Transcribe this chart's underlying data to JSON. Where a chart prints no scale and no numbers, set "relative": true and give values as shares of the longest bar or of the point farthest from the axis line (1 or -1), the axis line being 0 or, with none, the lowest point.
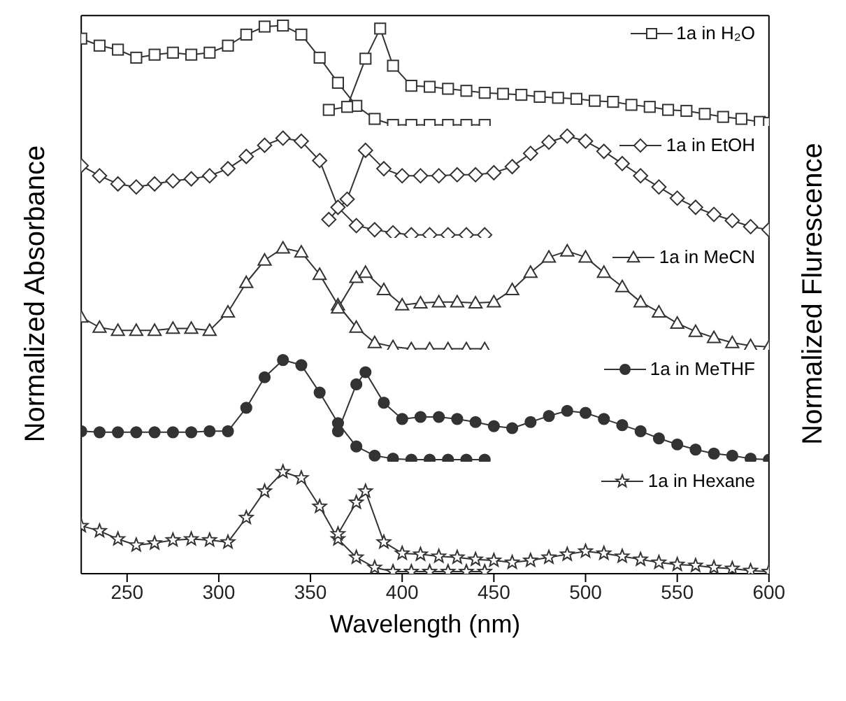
{
  "chart_data": [
    {
      "type": "line",
      "relative": true,
      "legend": "top right",
      "marker": "square",
      "tick_labels": false,
      "xlim": [
        225,
        600
      ],
      "series": [
        {
          "name": "1a in H₂O",
          "color": "#333333",
          "x": [
            225,
            235,
            245,
            255,
            265,
            275,
            285,
            295,
            305,
            315,
            325,
            335,
            345,
            355,
            365,
            375,
            385,
            395,
            405,
            415,
            425,
            435,
            445
          ],
          "values": [
            0.87,
            0.8,
            0.76,
            0.68,
            0.71,
            0.73,
            0.71,
            0.73,
            0.8,
            0.91,
            0.99,
            1,
            0.91,
            0.68,
            0.43,
            0.2,
            0.07,
            0.01,
            0.01,
            0.01,
            0.01,
            0.01,
            0.01
          ]
        },
        {
          "color": "#333333",
          "x": [
            360,
            370,
            380,
            388,
            395,
            405,
            415,
            425,
            435,
            445,
            455,
            465,
            475,
            485,
            495,
            505,
            515,
            525,
            535,
            545,
            555,
            565,
            575,
            585,
            595,
            600
          ],
          "values": [
            0.16,
            0.19,
            0.67,
            0.97,
            0.6,
            0.4,
            0.39,
            0.37,
            0.35,
            0.33,
            0.32,
            0.31,
            0.29,
            0.28,
            0.27,
            0.25,
            0.24,
            0.21,
            0.19,
            0.16,
            0.15,
            0.12,
            0.09,
            0.07,
            0.04,
            0.03
          ]
        }
      ]
    },
    {
      "type": "line",
      "relative": true,
      "legend": "top right",
      "marker": "diamond",
      "tick_labels": false,
      "xlim": [
        225,
        600
      ],
      "series": [
        {
          "name": "1a in EtOH",
          "color": "#333333",
          "x": [
            225,
            235,
            245,
            255,
            265,
            275,
            285,
            295,
            305,
            315,
            325,
            335,
            345,
            355,
            365,
            375,
            385,
            395,
            405,
            415,
            425,
            435,
            445
          ],
          "values": [
            0.71,
            0.61,
            0.53,
            0.5,
            0.53,
            0.56,
            0.58,
            0.61,
            0.68,
            0.8,
            0.91,
            0.98,
            0.95,
            0.76,
            0.3,
            0.12,
            0.08,
            0.05,
            0.03,
            0.03,
            0.03,
            0.03,
            0.03
          ]
        },
        {
          "color": "#333333",
          "x": [
            360,
            370,
            380,
            390,
            400,
            410,
            420,
            430,
            440,
            450,
            460,
            470,
            480,
            490,
            500,
            510,
            520,
            530,
            540,
            550,
            560,
            570,
            580,
            590,
            600
          ],
          "values": [
            0.18,
            0.38,
            0.86,
            0.68,
            0.61,
            0.61,
            0.61,
            0.62,
            0.62,
            0.64,
            0.7,
            0.83,
            0.94,
            1,
            0.95,
            0.85,
            0.73,
            0.61,
            0.5,
            0.39,
            0.3,
            0.23,
            0.17,
            0.11,
            0.08
          ]
        }
      ]
    },
    {
      "type": "line",
      "relative": true,
      "legend": "top right",
      "marker": "triangle",
      "tick_labels": false,
      "xlim": [
        225,
        600
      ],
      "ylabel": "Normalized Absorbance",
      "y2label": "Normalized Flurescence",
      "series": [
        {
          "name": "1a in MeCN",
          "color": "#333333",
          "x": [
            225,
            235,
            245,
            255,
            265,
            275,
            285,
            295,
            305,
            315,
            325,
            335,
            345,
            355,
            365,
            375,
            385,
            395,
            405,
            415,
            425,
            435,
            445
          ],
          "values": [
            0.32,
            0.22,
            0.19,
            0.19,
            0.19,
            0.21,
            0.21,
            0.19,
            0.37,
            0.66,
            0.88,
            1,
            0.96,
            0.74,
            0.44,
            0.22,
            0.07,
            0.03,
            0.01,
            0.01,
            0.01,
            0.01,
            0.01
          ]
        },
        {
          "color": "#333333",
          "x": [
            365,
            375,
            380,
            390,
            400,
            410,
            420,
            430,
            440,
            450,
            460,
            470,
            480,
            490,
            500,
            510,
            520,
            530,
            540,
            550,
            560,
            570,
            580,
            590,
            600
          ],
          "values": [
            0.41,
            0.71,
            0.76,
            0.59,
            0.44,
            0.46,
            0.47,
            0.47,
            0.46,
            0.47,
            0.59,
            0.76,
            0.91,
            0.97,
            0.91,
            0.76,
            0.62,
            0.47,
            0.37,
            0.26,
            0.18,
            0.12,
            0.07,
            0.04,
            0.03
          ]
        }
      ]
    },
    {
      "type": "line",
      "relative": true,
      "legend": "top right",
      "marker": "circle",
      "tick_labels": false,
      "xlim": [
        225,
        600
      ],
      "series": [
        {
          "name": "1a in MeTHF",
          "color": "#333333",
          "x": [
            225,
            235,
            245,
            255,
            265,
            275,
            285,
            295,
            305,
            315,
            325,
            335,
            345,
            355,
            365,
            375,
            385,
            395,
            405,
            415,
            425,
            435,
            445
          ],
          "values": [
            0.3,
            0.29,
            0.29,
            0.29,
            0.29,
            0.29,
            0.29,
            0.3,
            0.3,
            0.53,
            0.83,
            1,
            0.95,
            0.68,
            0.38,
            0.15,
            0.06,
            0.03,
            0.02,
            0.02,
            0.02,
            0.02,
            0.02
          ]
        },
        {
          "color": "#333333",
          "x": [
            365,
            375,
            380,
            390,
            400,
            410,
            420,
            430,
            440,
            450,
            460,
            470,
            480,
            490,
            500,
            510,
            520,
            530,
            540,
            550,
            560,
            570,
            580,
            590,
            600
          ],
          "values": [
            0.3,
            0.76,
            0.88,
            0.58,
            0.42,
            0.44,
            0.44,
            0.42,
            0.39,
            0.35,
            0.33,
            0.39,
            0.45,
            0.5,
            0.48,
            0.42,
            0.36,
            0.3,
            0.23,
            0.17,
            0.12,
            0.08,
            0.06,
            0.03,
            0.02
          ]
        }
      ]
    },
    {
      "type": "line",
      "relative": true,
      "legend": "top right",
      "marker": "star",
      "tick_labels": "x",
      "xlim": [
        225,
        600
      ],
      "xticks": [
        250,
        300,
        350,
        400,
        450,
        500,
        550,
        600
      ],
      "xlabel": "Wavelength (nm)",
      "series": [
        {
          "name": "1a in Hexane",
          "color": "#333333",
          "x": [
            225,
            235,
            245,
            255,
            265,
            275,
            285,
            295,
            305,
            315,
            325,
            335,
            345,
            355,
            365,
            375,
            385,
            395,
            405,
            415,
            425,
            435,
            445
          ],
          "values": [
            0.47,
            0.42,
            0.34,
            0.28,
            0.3,
            0.33,
            0.34,
            0.33,
            0.31,
            0.55,
            0.81,
            1,
            0.94,
            0.66,
            0.34,
            0.16,
            0.06,
            0.02,
            0.02,
            0.02,
            0.02,
            0.02,
            0.02
          ]
        },
        {
          "color": "#333333",
          "x": [
            365,
            375,
            380,
            390,
            400,
            410,
            420,
            430,
            440,
            450,
            460,
            470,
            480,
            490,
            500,
            510,
            520,
            530,
            540,
            550,
            560,
            570,
            580,
            590,
            600
          ],
          "values": [
            0.39,
            0.7,
            0.81,
            0.31,
            0.2,
            0.19,
            0.17,
            0.16,
            0.14,
            0.13,
            0.11,
            0.13,
            0.16,
            0.19,
            0.22,
            0.2,
            0.17,
            0.14,
            0.11,
            0.09,
            0.08,
            0.06,
            0.05,
            0.03,
            0.02
          ]
        }
      ]
    }
  ]
}
